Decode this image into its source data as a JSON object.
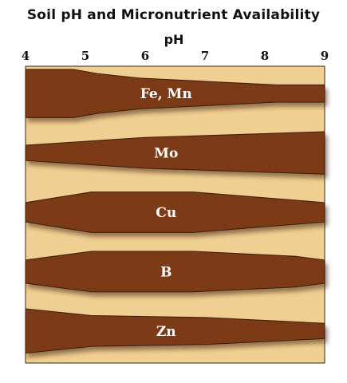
{
  "chart_data": {
    "type": "area",
    "title": "Soil pH and Micronutrient Availability",
    "xlabel": "pH",
    "ylabel": "",
    "xlim": [
      4,
      9
    ],
    "x_ticks": [
      "4",
      "5",
      "6",
      "7",
      "8",
      "9"
    ],
    "grid": false,
    "legend": "none",
    "series": [
      {
        "name": "Fe, Mn",
        "x": [
          4,
          4.8,
          5.2,
          5.9,
          8.2,
          9
        ],
        "values": [
          1.0,
          1.0,
          0.78,
          0.55,
          0.2,
          0.2
        ]
      },
      {
        "name": "Mo",
        "x": [
          4,
          6,
          9
        ],
        "values": [
          0.15,
          0.55,
          0.85
        ]
      },
      {
        "name": "Cu",
        "x": [
          4,
          5.1,
          6.8,
          9
        ],
        "values": [
          0.25,
          0.8,
          0.8,
          0.25
        ]
      },
      {
        "name": "B",
        "x": [
          4,
          5.1,
          6.8,
          8.5,
          9
        ],
        "values": [
          0.35,
          0.8,
          0.8,
          0.55,
          0.35
        ]
      },
      {
        "name": "Zn",
        "x": [
          4,
          5.1,
          7,
          9
        ],
        "values": [
          0.9,
          0.55,
          0.45,
          0.15
        ]
      }
    ]
  },
  "colors": {
    "background": "#f0cf92",
    "band": "#7b3a12",
    "label": "#ffffff",
    "text": "#111111"
  }
}
